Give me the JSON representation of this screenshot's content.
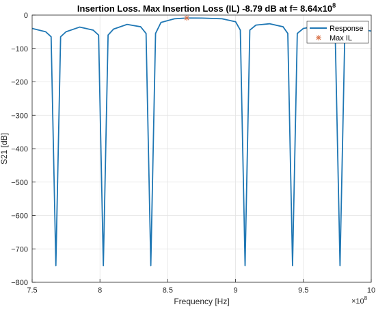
{
  "chart_data": {
    "type": "line",
    "title": "Insertion Loss. Max Insertion Loss (IL) -8.79 dB at f= 8.64x10",
    "title_superscript": "8",
    "xlabel": "Frequency [Hz]",
    "ylabel": "S21 [dB]",
    "x_exponent_base": "×10",
    "x_exponent_power": "8",
    "xlim": [
      7.5,
      10
    ],
    "ylim": [
      -800,
      0
    ],
    "xticks": [
      7.5,
      8,
      8.5,
      9,
      9.5,
      10
    ],
    "xtick_labels": [
      "7.5",
      "8",
      "8.5",
      "9",
      "9.5",
      "10"
    ],
    "yticks": [
      0,
      -100,
      -200,
      -300,
      -400,
      -500,
      -600,
      -700,
      -800
    ],
    "ytick_labels": [
      "0",
      "−100",
      "−200",
      "−300",
      "−400",
      "−500",
      "−600",
      "−700",
      "−800"
    ],
    "grid": true,
    "legend_position": "top-right",
    "series": [
      {
        "name": "Response",
        "color": "#1f77b4",
        "nulls": [
          7.675,
          8.025,
          8.375,
          9.07,
          9.42,
          9.77
        ],
        "null_depth": -750,
        "x": [
          7.5,
          7.6,
          7.64,
          7.675,
          7.71,
          7.75,
          7.85,
          7.95,
          7.99,
          8.025,
          8.06,
          8.1,
          8.2,
          8.3,
          8.34,
          8.375,
          8.41,
          8.45,
          8.55,
          8.64,
          8.75,
          8.9,
          9.0,
          9.035,
          9.07,
          9.105,
          9.15,
          9.25,
          9.35,
          9.385,
          9.42,
          9.455,
          9.5,
          9.6,
          9.7,
          9.735,
          9.77,
          9.805,
          9.85,
          9.95,
          10.0
        ],
        "y": [
          -40,
          -50,
          -65,
          -750,
          -65,
          -50,
          -36,
          -45,
          -60,
          -750,
          -60,
          -42,
          -28,
          -35,
          -55,
          -750,
          -55,
          -22,
          -11,
          -8.79,
          -9,
          -11,
          -20,
          -45,
          -750,
          -45,
          -30,
          -26,
          -35,
          -55,
          -750,
          -55,
          -40,
          -33,
          -45,
          -65,
          -750,
          -65,
          -48,
          -44,
          -48
        ]
      },
      {
        "name": "Max IL",
        "color": "#d9734a",
        "marker": "asterisk",
        "x": [
          8.64
        ],
        "y": [
          -8.79
        ]
      }
    ]
  }
}
